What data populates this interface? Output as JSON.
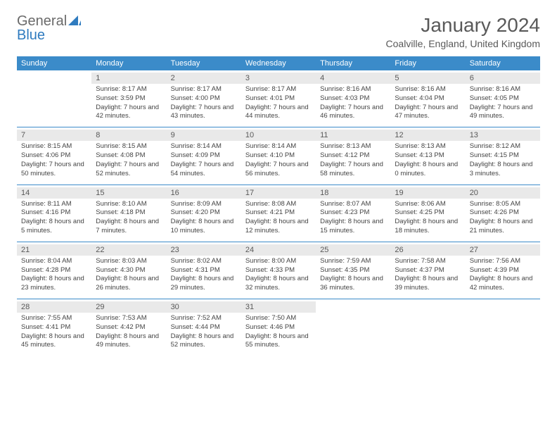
{
  "brand": {
    "part1": "General",
    "part2": "Blue"
  },
  "title": "January 2024",
  "location": "Coalville, England, United Kingdom",
  "colors": {
    "header_bg": "#3b8bc9",
    "header_text": "#ffffff",
    "daynum_bg": "#e9e9e9",
    "text": "#444444",
    "rule": "#3b8bc9",
    "logo_gray": "#6a6a6a",
    "logo_blue": "#2f7bbf"
  },
  "day_headers": [
    "Sunday",
    "Monday",
    "Tuesday",
    "Wednesday",
    "Thursday",
    "Friday",
    "Saturday"
  ],
  "weeks": [
    [
      {
        "num": "",
        "sunrise": "",
        "sunset": "",
        "daylight": ""
      },
      {
        "num": "1",
        "sunrise": "Sunrise: 8:17 AM",
        "sunset": "Sunset: 3:59 PM",
        "daylight": "Daylight: 7 hours and 42 minutes."
      },
      {
        "num": "2",
        "sunrise": "Sunrise: 8:17 AM",
        "sunset": "Sunset: 4:00 PM",
        "daylight": "Daylight: 7 hours and 43 minutes."
      },
      {
        "num": "3",
        "sunrise": "Sunrise: 8:17 AM",
        "sunset": "Sunset: 4:01 PM",
        "daylight": "Daylight: 7 hours and 44 minutes."
      },
      {
        "num": "4",
        "sunrise": "Sunrise: 8:16 AM",
        "sunset": "Sunset: 4:03 PM",
        "daylight": "Daylight: 7 hours and 46 minutes."
      },
      {
        "num": "5",
        "sunrise": "Sunrise: 8:16 AM",
        "sunset": "Sunset: 4:04 PM",
        "daylight": "Daylight: 7 hours and 47 minutes."
      },
      {
        "num": "6",
        "sunrise": "Sunrise: 8:16 AM",
        "sunset": "Sunset: 4:05 PM",
        "daylight": "Daylight: 7 hours and 49 minutes."
      }
    ],
    [
      {
        "num": "7",
        "sunrise": "Sunrise: 8:15 AM",
        "sunset": "Sunset: 4:06 PM",
        "daylight": "Daylight: 7 hours and 50 minutes."
      },
      {
        "num": "8",
        "sunrise": "Sunrise: 8:15 AM",
        "sunset": "Sunset: 4:08 PM",
        "daylight": "Daylight: 7 hours and 52 minutes."
      },
      {
        "num": "9",
        "sunrise": "Sunrise: 8:14 AM",
        "sunset": "Sunset: 4:09 PM",
        "daylight": "Daylight: 7 hours and 54 minutes."
      },
      {
        "num": "10",
        "sunrise": "Sunrise: 8:14 AM",
        "sunset": "Sunset: 4:10 PM",
        "daylight": "Daylight: 7 hours and 56 minutes."
      },
      {
        "num": "11",
        "sunrise": "Sunrise: 8:13 AM",
        "sunset": "Sunset: 4:12 PM",
        "daylight": "Daylight: 7 hours and 58 minutes."
      },
      {
        "num": "12",
        "sunrise": "Sunrise: 8:13 AM",
        "sunset": "Sunset: 4:13 PM",
        "daylight": "Daylight: 8 hours and 0 minutes."
      },
      {
        "num": "13",
        "sunrise": "Sunrise: 8:12 AM",
        "sunset": "Sunset: 4:15 PM",
        "daylight": "Daylight: 8 hours and 3 minutes."
      }
    ],
    [
      {
        "num": "14",
        "sunrise": "Sunrise: 8:11 AM",
        "sunset": "Sunset: 4:16 PM",
        "daylight": "Daylight: 8 hours and 5 minutes."
      },
      {
        "num": "15",
        "sunrise": "Sunrise: 8:10 AM",
        "sunset": "Sunset: 4:18 PM",
        "daylight": "Daylight: 8 hours and 7 minutes."
      },
      {
        "num": "16",
        "sunrise": "Sunrise: 8:09 AM",
        "sunset": "Sunset: 4:20 PM",
        "daylight": "Daylight: 8 hours and 10 minutes."
      },
      {
        "num": "17",
        "sunrise": "Sunrise: 8:08 AM",
        "sunset": "Sunset: 4:21 PM",
        "daylight": "Daylight: 8 hours and 12 minutes."
      },
      {
        "num": "18",
        "sunrise": "Sunrise: 8:07 AM",
        "sunset": "Sunset: 4:23 PM",
        "daylight": "Daylight: 8 hours and 15 minutes."
      },
      {
        "num": "19",
        "sunrise": "Sunrise: 8:06 AM",
        "sunset": "Sunset: 4:25 PM",
        "daylight": "Daylight: 8 hours and 18 minutes."
      },
      {
        "num": "20",
        "sunrise": "Sunrise: 8:05 AM",
        "sunset": "Sunset: 4:26 PM",
        "daylight": "Daylight: 8 hours and 21 minutes."
      }
    ],
    [
      {
        "num": "21",
        "sunrise": "Sunrise: 8:04 AM",
        "sunset": "Sunset: 4:28 PM",
        "daylight": "Daylight: 8 hours and 23 minutes."
      },
      {
        "num": "22",
        "sunrise": "Sunrise: 8:03 AM",
        "sunset": "Sunset: 4:30 PM",
        "daylight": "Daylight: 8 hours and 26 minutes."
      },
      {
        "num": "23",
        "sunrise": "Sunrise: 8:02 AM",
        "sunset": "Sunset: 4:31 PM",
        "daylight": "Daylight: 8 hours and 29 minutes."
      },
      {
        "num": "24",
        "sunrise": "Sunrise: 8:00 AM",
        "sunset": "Sunset: 4:33 PM",
        "daylight": "Daylight: 8 hours and 32 minutes."
      },
      {
        "num": "25",
        "sunrise": "Sunrise: 7:59 AM",
        "sunset": "Sunset: 4:35 PM",
        "daylight": "Daylight: 8 hours and 36 minutes."
      },
      {
        "num": "26",
        "sunrise": "Sunrise: 7:58 AM",
        "sunset": "Sunset: 4:37 PM",
        "daylight": "Daylight: 8 hours and 39 minutes."
      },
      {
        "num": "27",
        "sunrise": "Sunrise: 7:56 AM",
        "sunset": "Sunset: 4:39 PM",
        "daylight": "Daylight: 8 hours and 42 minutes."
      }
    ],
    [
      {
        "num": "28",
        "sunrise": "Sunrise: 7:55 AM",
        "sunset": "Sunset: 4:41 PM",
        "daylight": "Daylight: 8 hours and 45 minutes."
      },
      {
        "num": "29",
        "sunrise": "Sunrise: 7:53 AM",
        "sunset": "Sunset: 4:42 PM",
        "daylight": "Daylight: 8 hours and 49 minutes."
      },
      {
        "num": "30",
        "sunrise": "Sunrise: 7:52 AM",
        "sunset": "Sunset: 4:44 PM",
        "daylight": "Daylight: 8 hours and 52 minutes."
      },
      {
        "num": "31",
        "sunrise": "Sunrise: 7:50 AM",
        "sunset": "Sunset: 4:46 PM",
        "daylight": "Daylight: 8 hours and 55 minutes."
      },
      {
        "num": "",
        "sunrise": "",
        "sunset": "",
        "daylight": ""
      },
      {
        "num": "",
        "sunrise": "",
        "sunset": "",
        "daylight": ""
      },
      {
        "num": "",
        "sunrise": "",
        "sunset": "",
        "daylight": ""
      }
    ]
  ]
}
